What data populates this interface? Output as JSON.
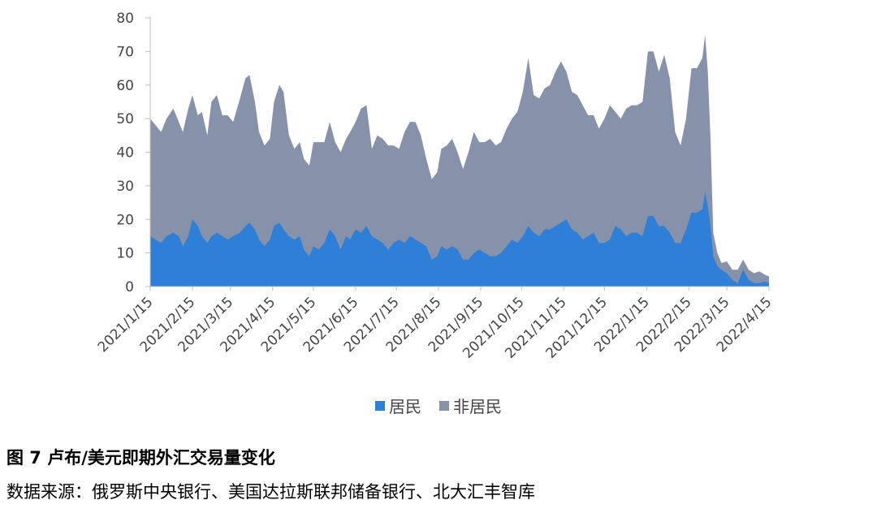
{
  "caption": {
    "title": "图 7 卢布/美元即期外汇交易量变化",
    "source": "数据来源：俄罗斯中央银行、美国达拉斯联邦储备银行、北大汇丰智库"
  },
  "chart_data": {
    "type": "area",
    "stacked": true,
    "ylim": [
      0,
      80
    ],
    "yticks": [
      0,
      10,
      20,
      30,
      40,
      50,
      60,
      70,
      80
    ],
    "xlim": [
      "2021-01-15",
      "2022-04-15"
    ],
    "x_tick_labels": [
      "2021/1/15",
      "2021/2/15",
      "2021/3/15",
      "2021/4/15",
      "2021/5/15",
      "2021/6/15",
      "2021/7/15",
      "2021/8/15",
      "2021/9/15",
      "2021/10/15",
      "2021/11/15",
      "2021/12/15",
      "2022/1/15",
      "2022/2/15",
      "2022/3/15",
      "2022/4/15"
    ],
    "x_tick_dates": [
      "2021-01-15",
      "2021-02-15",
      "2021-03-15",
      "2021-04-15",
      "2021-05-15",
      "2021-06-15",
      "2021-07-15",
      "2021-08-15",
      "2021-09-15",
      "2021-10-15",
      "2021-11-15",
      "2021-12-15",
      "2022-01-15",
      "2022-02-15",
      "2022-03-15",
      "2022-04-15"
    ],
    "legend_position": "bottom",
    "series": [
      {
        "name": "居民",
        "color": "#2E7FD8",
        "points": [
          [
            "2021-01-15",
            15
          ],
          [
            "2021-01-19",
            14
          ],
          [
            "2021-01-23",
            13
          ],
          [
            "2021-01-27",
            15
          ],
          [
            "2021-02-01",
            16
          ],
          [
            "2021-02-05",
            15
          ],
          [
            "2021-02-08",
            12
          ],
          [
            "2021-02-12",
            15
          ],
          [
            "2021-02-15",
            20
          ],
          [
            "2021-02-19",
            18
          ],
          [
            "2021-02-22",
            15
          ],
          [
            "2021-02-26",
            13
          ],
          [
            "2021-03-01",
            15
          ],
          [
            "2021-03-05",
            16
          ],
          [
            "2021-03-09",
            15
          ],
          [
            "2021-03-13",
            14
          ],
          [
            "2021-03-17",
            15
          ],
          [
            "2021-03-22",
            16
          ],
          [
            "2021-03-26",
            18
          ],
          [
            "2021-03-29",
            19
          ],
          [
            "2021-04-02",
            17
          ],
          [
            "2021-04-05",
            14
          ],
          [
            "2021-04-09",
            12
          ],
          [
            "2021-04-13",
            14
          ],
          [
            "2021-04-16",
            18
          ],
          [
            "2021-04-20",
            19
          ],
          [
            "2021-04-23",
            17
          ],
          [
            "2021-04-27",
            15
          ],
          [
            "2021-05-01",
            14
          ],
          [
            "2021-05-05",
            15
          ],
          [
            "2021-05-08",
            11
          ],
          [
            "2021-05-12",
            9
          ],
          [
            "2021-05-15",
            12
          ],
          [
            "2021-05-19",
            11
          ],
          [
            "2021-05-23",
            13
          ],
          [
            "2021-05-27",
            17
          ],
          [
            "2021-05-31",
            15
          ],
          [
            "2021-06-04",
            11
          ],
          [
            "2021-06-08",
            15
          ],
          [
            "2021-06-11",
            14
          ],
          [
            "2021-06-15",
            17
          ],
          [
            "2021-06-19",
            16
          ],
          [
            "2021-06-23",
            18
          ],
          [
            "2021-06-27",
            15
          ],
          [
            "2021-07-01",
            14
          ],
          [
            "2021-07-05",
            13
          ],
          [
            "2021-07-09",
            11
          ],
          [
            "2021-07-13",
            13
          ],
          [
            "2021-07-17",
            14
          ],
          [
            "2021-07-21",
            13
          ],
          [
            "2021-07-25",
            15
          ],
          [
            "2021-07-29",
            14
          ],
          [
            "2021-08-02",
            13
          ],
          [
            "2021-08-06",
            12
          ],
          [
            "2021-08-10",
            8
          ],
          [
            "2021-08-14",
            9
          ],
          [
            "2021-08-17",
            12
          ],
          [
            "2021-08-21",
            11
          ],
          [
            "2021-08-25",
            12
          ],
          [
            "2021-08-29",
            11
          ],
          [
            "2021-09-02",
            8
          ],
          [
            "2021-09-06",
            8
          ],
          [
            "2021-09-10",
            10
          ],
          [
            "2021-09-14",
            11
          ],
          [
            "2021-09-18",
            10
          ],
          [
            "2021-09-22",
            9
          ],
          [
            "2021-09-26",
            9
          ],
          [
            "2021-09-30",
            10
          ],
          [
            "2021-10-04",
            12
          ],
          [
            "2021-10-08",
            14
          ],
          [
            "2021-10-12",
            13
          ],
          [
            "2021-10-16",
            15
          ],
          [
            "2021-10-20",
            18
          ],
          [
            "2021-10-24",
            16
          ],
          [
            "2021-10-28",
            15
          ],
          [
            "2021-11-01",
            17
          ],
          [
            "2021-11-05",
            17
          ],
          [
            "2021-11-09",
            18
          ],
          [
            "2021-11-13",
            19
          ],
          [
            "2021-11-17",
            20
          ],
          [
            "2021-11-21",
            17
          ],
          [
            "2021-11-25",
            16
          ],
          [
            "2021-11-29",
            14
          ],
          [
            "2021-12-03",
            15
          ],
          [
            "2021-12-07",
            16
          ],
          [
            "2021-12-11",
            13
          ],
          [
            "2021-12-15",
            13
          ],
          [
            "2021-12-19",
            14
          ],
          [
            "2021-12-23",
            18
          ],
          [
            "2021-12-27",
            17
          ],
          [
            "2021-12-31",
            15
          ],
          [
            "2022-01-04",
            16
          ],
          [
            "2022-01-08",
            16
          ],
          [
            "2022-01-12",
            15
          ],
          [
            "2022-01-16",
            21
          ],
          [
            "2022-01-20",
            21
          ],
          [
            "2022-01-24",
            18
          ],
          [
            "2022-01-28",
            18
          ],
          [
            "2022-02-01",
            16
          ],
          [
            "2022-02-05",
            13
          ],
          [
            "2022-02-09",
            13
          ],
          [
            "2022-02-13",
            17
          ],
          [
            "2022-02-17",
            22
          ],
          [
            "2022-02-21",
            22
          ],
          [
            "2022-02-25",
            23
          ],
          [
            "2022-02-27",
            28
          ],
          [
            "2022-03-01",
            24
          ],
          [
            "2022-03-03",
            18
          ],
          [
            "2022-03-05",
            9
          ],
          [
            "2022-03-08",
            6
          ],
          [
            "2022-03-11",
            5
          ],
          [
            "2022-03-15",
            4
          ],
          [
            "2022-03-19",
            2
          ],
          [
            "2022-03-23",
            1
          ],
          [
            "2022-03-27",
            5
          ],
          [
            "2022-03-31",
            2
          ],
          [
            "2022-04-04",
            1
          ],
          [
            "2022-04-08",
            1
          ],
          [
            "2022-04-12",
            1.5
          ],
          [
            "2022-04-15",
            1
          ]
        ]
      },
      {
        "name": "非居民",
        "color": "#8592AA",
        "points": [
          [
            "2021-01-15",
            35
          ],
          [
            "2021-01-19",
            34
          ],
          [
            "2021-01-23",
            33
          ],
          [
            "2021-01-27",
            35
          ],
          [
            "2021-02-01",
            37
          ],
          [
            "2021-02-05",
            34
          ],
          [
            "2021-02-08",
            34
          ],
          [
            "2021-02-12",
            38
          ],
          [
            "2021-02-15",
            37
          ],
          [
            "2021-02-19",
            33
          ],
          [
            "2021-02-22",
            37
          ],
          [
            "2021-02-26",
            32
          ],
          [
            "2021-03-01",
            40
          ],
          [
            "2021-03-05",
            41
          ],
          [
            "2021-03-09",
            36
          ],
          [
            "2021-03-13",
            37
          ],
          [
            "2021-03-17",
            34
          ],
          [
            "2021-03-22",
            40
          ],
          [
            "2021-03-26",
            44
          ],
          [
            "2021-03-29",
            44
          ],
          [
            "2021-04-02",
            38
          ],
          [
            "2021-04-05",
            32
          ],
          [
            "2021-04-09",
            30
          ],
          [
            "2021-04-13",
            30
          ],
          [
            "2021-04-16",
            37
          ],
          [
            "2021-04-20",
            41
          ],
          [
            "2021-04-23",
            41
          ],
          [
            "2021-04-27",
            30
          ],
          [
            "2021-05-01",
            27
          ],
          [
            "2021-05-05",
            28
          ],
          [
            "2021-05-08",
            27
          ],
          [
            "2021-05-12",
            27
          ],
          [
            "2021-05-15",
            31
          ],
          [
            "2021-05-19",
            32
          ],
          [
            "2021-05-23",
            30
          ],
          [
            "2021-05-27",
            32
          ],
          [
            "2021-05-31",
            28
          ],
          [
            "2021-06-04",
            29
          ],
          [
            "2021-06-08",
            29
          ],
          [
            "2021-06-11",
            32
          ],
          [
            "2021-06-15",
            32
          ],
          [
            "2021-06-19",
            37
          ],
          [
            "2021-06-23",
            36
          ],
          [
            "2021-06-27",
            26
          ],
          [
            "2021-07-01",
            31
          ],
          [
            "2021-07-05",
            31
          ],
          [
            "2021-07-09",
            31
          ],
          [
            "2021-07-13",
            29
          ],
          [
            "2021-07-17",
            27
          ],
          [
            "2021-07-21",
            33
          ],
          [
            "2021-07-25",
            34
          ],
          [
            "2021-07-29",
            35
          ],
          [
            "2021-08-02",
            32
          ],
          [
            "2021-08-06",
            26
          ],
          [
            "2021-08-10",
            24
          ],
          [
            "2021-08-14",
            25
          ],
          [
            "2021-08-17",
            29
          ],
          [
            "2021-08-21",
            31
          ],
          [
            "2021-08-25",
            32
          ],
          [
            "2021-08-29",
            29
          ],
          [
            "2021-09-02",
            27
          ],
          [
            "2021-09-06",
            32
          ],
          [
            "2021-09-10",
            36
          ],
          [
            "2021-09-14",
            32
          ],
          [
            "2021-09-18",
            33
          ],
          [
            "2021-09-22",
            35
          ],
          [
            "2021-09-26",
            33
          ],
          [
            "2021-09-30",
            33
          ],
          [
            "2021-10-04",
            35
          ],
          [
            "2021-10-08",
            36
          ],
          [
            "2021-10-12",
            39
          ],
          [
            "2021-10-16",
            43
          ],
          [
            "2021-10-20",
            50
          ],
          [
            "2021-10-24",
            41
          ],
          [
            "2021-10-28",
            41
          ],
          [
            "2021-11-01",
            42
          ],
          [
            "2021-11-05",
            43
          ],
          [
            "2021-11-09",
            46
          ],
          [
            "2021-11-13",
            48
          ],
          [
            "2021-11-17",
            44
          ],
          [
            "2021-11-21",
            41
          ],
          [
            "2021-11-25",
            41
          ],
          [
            "2021-11-29",
            40
          ],
          [
            "2021-12-03",
            36
          ],
          [
            "2021-12-07",
            35
          ],
          [
            "2021-12-11",
            34
          ],
          [
            "2021-12-15",
            37
          ],
          [
            "2021-12-19",
            40
          ],
          [
            "2021-12-23",
            34
          ],
          [
            "2021-12-27",
            33
          ],
          [
            "2021-12-31",
            38
          ],
          [
            "2022-01-04",
            38
          ],
          [
            "2022-01-08",
            38
          ],
          [
            "2022-01-12",
            40
          ],
          [
            "2022-01-16",
            49
          ],
          [
            "2022-01-20",
            49
          ],
          [
            "2022-01-24",
            46
          ],
          [
            "2022-01-28",
            51
          ],
          [
            "2022-02-01",
            46
          ],
          [
            "2022-02-05",
            33
          ],
          [
            "2022-02-09",
            29
          ],
          [
            "2022-02-13",
            33
          ],
          [
            "2022-02-17",
            43
          ],
          [
            "2022-02-21",
            43
          ],
          [
            "2022-02-25",
            45
          ],
          [
            "2022-02-27",
            47
          ],
          [
            "2022-03-01",
            40
          ],
          [
            "2022-03-03",
            26
          ],
          [
            "2022-03-05",
            7
          ],
          [
            "2022-03-08",
            4
          ],
          [
            "2022-03-11",
            2
          ],
          [
            "2022-03-15",
            3.5
          ],
          [
            "2022-03-19",
            3
          ],
          [
            "2022-03-23",
            4
          ],
          [
            "2022-03-27",
            3
          ],
          [
            "2022-03-31",
            3
          ],
          [
            "2022-04-04",
            3
          ],
          [
            "2022-04-08",
            3.5
          ],
          [
            "2022-04-12",
            2
          ],
          [
            "2022-04-15",
            2
          ]
        ]
      }
    ]
  }
}
